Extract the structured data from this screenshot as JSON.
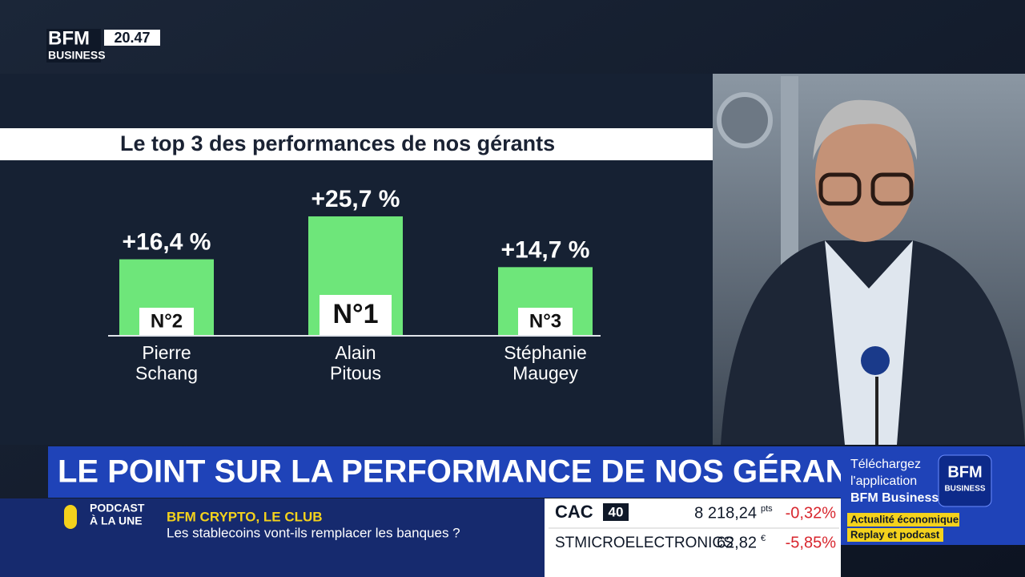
{
  "channel": {
    "logo_top": "BFM",
    "logo_bottom": "BUSINESS",
    "clock": "20.47"
  },
  "chart_data": {
    "type": "bar",
    "title": "Le top 3 des performances de nos gérants",
    "categories": [
      "Pierre\nSchang",
      "Alain\nPitous",
      "Stéphanie\nMaugey"
    ],
    "values": [
      16.4,
      25.7,
      14.7
    ],
    "value_labels": [
      "+16,4 %",
      "+25,7 %",
      "+14,7 %"
    ],
    "ranks": [
      "N°2",
      "N°1",
      "N°3"
    ],
    "color": "#6ee67a"
  },
  "headline": "LE POINT SUR LA PERFORMANCE DE NOS GÉRANTS",
  "promo": {
    "line1": "Téléchargez",
    "line2": "l'application",
    "line3": "BFM Business",
    "logo_top": "BFM",
    "logo_bottom": "BUSINESS",
    "tag1": "Actualité économique",
    "tag2": "Replay et podcast"
  },
  "podcast": {
    "label1": "PODCAST",
    "label2": "À LA UNE",
    "show": "BFM CRYPTO, LE CLUB",
    "episode": "Les stablecoins vont-ils remplacer les banques ?"
  },
  "ticker": {
    "index_name": "CAC",
    "index_num": "40",
    "index_value": "8 218,24",
    "index_unit": "pts",
    "index_change": "-0,32%",
    "stock_name": "STMICROELECTRONICS",
    "stock_value": "62,82",
    "stock_unit": "€",
    "stock_change": "-5,85%"
  }
}
